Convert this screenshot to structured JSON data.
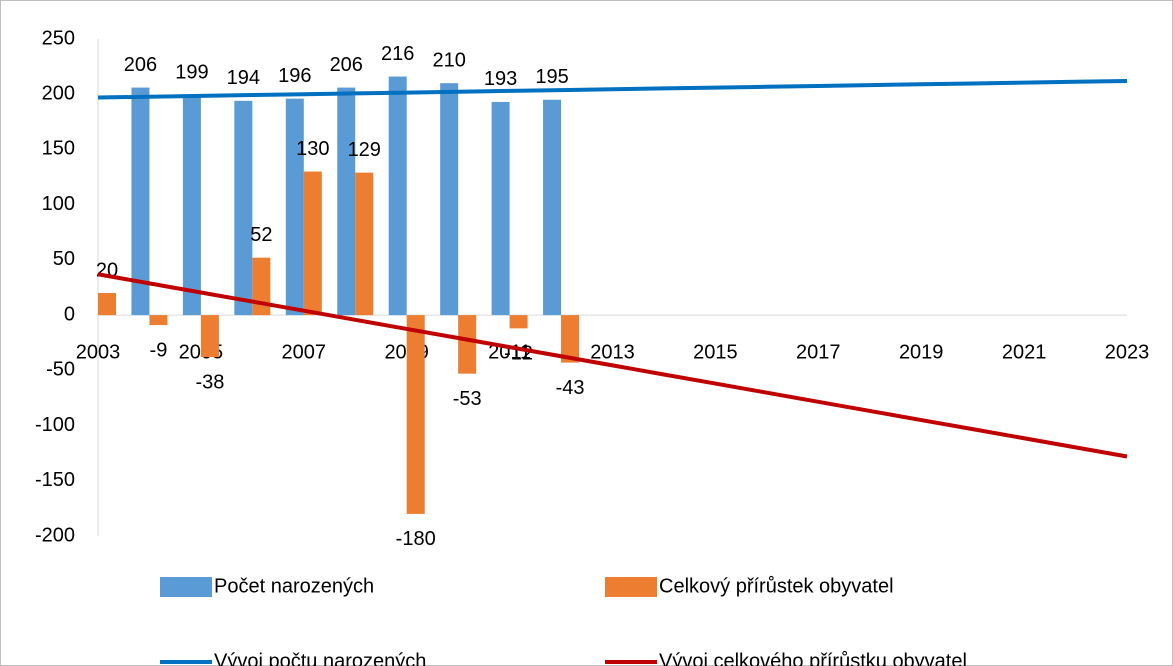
{
  "chart_data": {
    "type": "bar",
    "categories": [
      "2003",
      null,
      "2005",
      null,
      "2007",
      null,
      "2009",
      null,
      "2011",
      null,
      "2013",
      null,
      "2015",
      null,
      "2017",
      null,
      "2019",
      null,
      "2021",
      null,
      "2023"
    ],
    "series": [
      {
        "name": "Počet narozených",
        "type": "bar",
        "color": "#5b9bd5",
        "values": [
          null,
          206,
          199,
          194,
          196,
          206,
          216,
          210,
          193,
          195,
          null,
          null,
          null,
          null,
          null,
          null,
          null,
          null,
          null,
          null,
          null
        ]
      },
      {
        "name": "Celkový přírůstek obyvatel",
        "type": "bar",
        "color": "#ed7d31",
        "values": [
          20,
          -9,
          -38,
          52,
          130,
          129,
          -180,
          -53,
          -12,
          -43,
          null,
          null,
          null,
          null,
          null,
          null,
          null,
          null,
          null,
          null,
          null
        ]
      },
      {
        "name": "Vývoj počtu narozených",
        "type": "line",
        "color": "#0070c0",
        "values": [
          197,
          197.75,
          198.5,
          199.25,
          200,
          200.75,
          201.5,
          202.25,
          203,
          203.75,
          204.5,
          205.25,
          206,
          206.75,
          207.5,
          208.25,
          209,
          209.75,
          210.5,
          211.25,
          212
        ]
      },
      {
        "name": "Vývoj celkového přírůstku obyvatel",
        "type": "line",
        "color": "#c00000",
        "values": [
          37,
          28.75,
          20.5,
          12.25,
          4,
          -4.25,
          -12.5,
          -20.75,
          -29,
          -37.25,
          -45.5,
          -53.75,
          -62,
          -70.25,
          -78.5,
          -86.75,
          -95,
          -103.25,
          -111.5,
          -119.75,
          -128
        ]
      }
    ],
    "ylim": [
      -200,
      250
    ],
    "yticks": [
      -200,
      -150,
      -100,
      -50,
      0,
      50,
      100,
      150,
      200,
      250
    ],
    "grid": false,
    "legend": "bottom"
  }
}
